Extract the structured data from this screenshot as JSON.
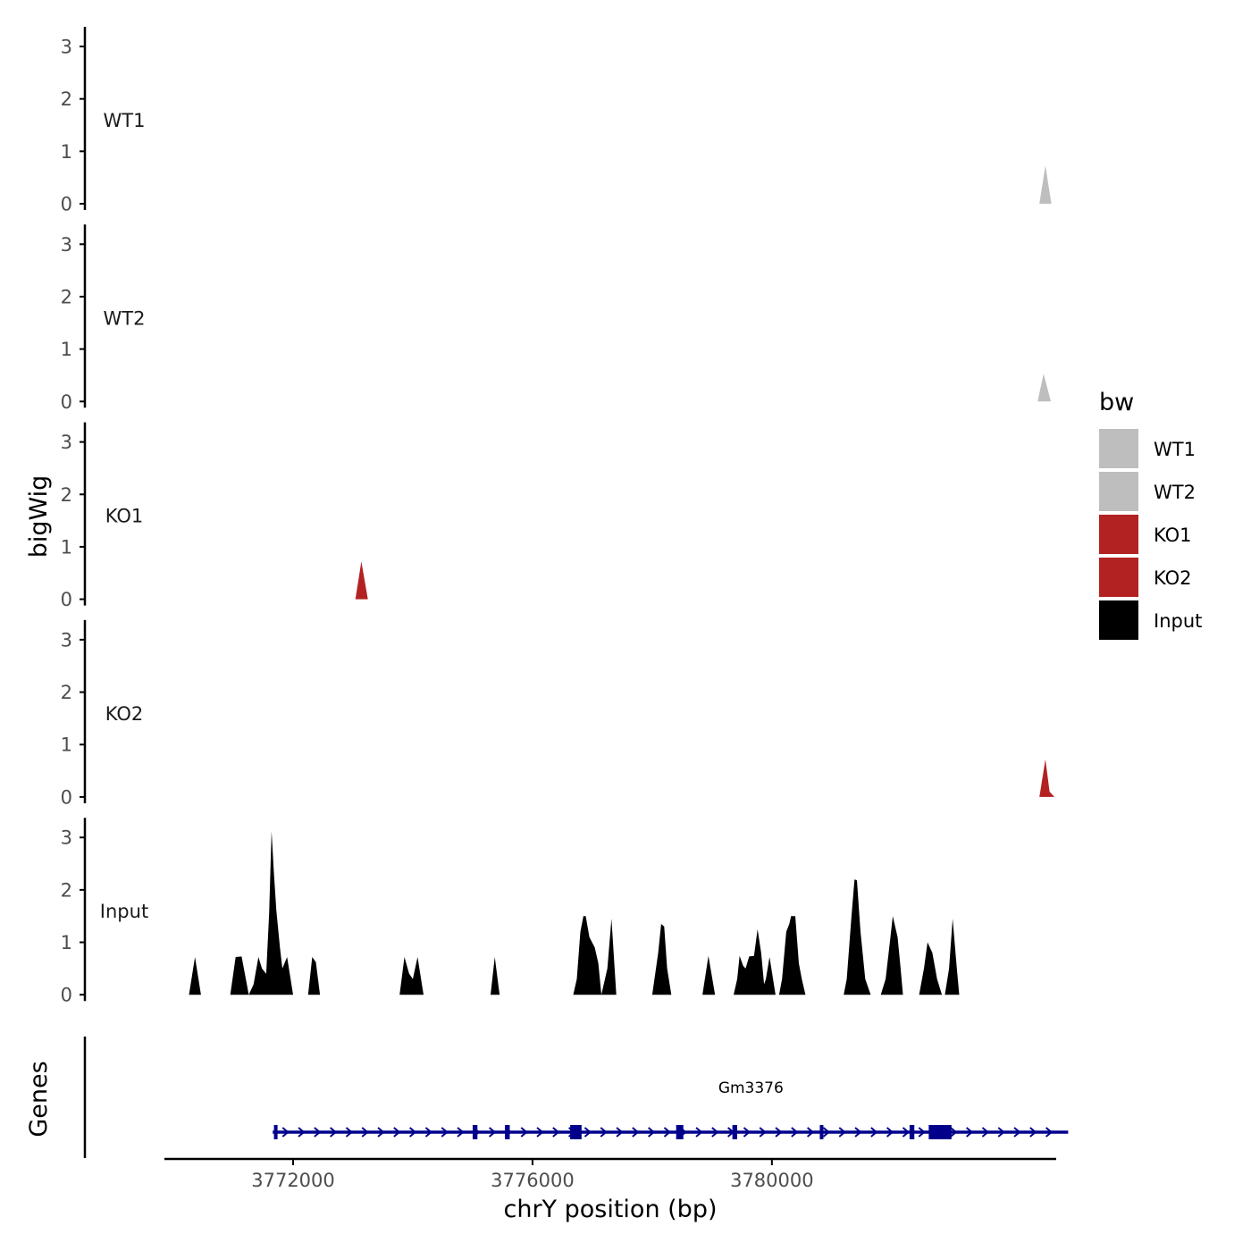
{
  "chart_data": {
    "type": "area",
    "chromosome": "chrY",
    "xlabel": "chrY position (bp)",
    "ylabel": "bigWig",
    "genes_panel_label": "Genes",
    "xlim": [
      3769850,
      3784750
    ],
    "x_ticks": [
      3772000,
      3776000,
      3780000
    ],
    "x_tick_labels": [
      "3772000",
      "3776000",
      "3780000"
    ],
    "ylim": [
      0,
      3.3
    ],
    "y_ticks": [
      0,
      1,
      2,
      3
    ],
    "y_tick_labels": [
      "0",
      "1",
      "2",
      "3"
    ],
    "legend": {
      "title": "bw",
      "position": "right",
      "entries": [
        {
          "label": "WT1",
          "color": "#BEBEBE"
        },
        {
          "label": "WT2",
          "color": "#BEBEBE"
        },
        {
          "label": "KO1",
          "color": "#B22222"
        },
        {
          "label": "KO2",
          "color": "#B22222"
        },
        {
          "label": "Input",
          "color": "#000000"
        }
      ]
    },
    "series": [
      {
        "name": "WT1",
        "color": "#BEBEBE",
        "points": [
          [
            3784470,
            0
          ],
          [
            3784570,
            0.73
          ],
          [
            3784670,
            0
          ]
        ]
      },
      {
        "name": "WT2",
        "color": "#BEBEBE",
        "points": [
          [
            3784440,
            0
          ],
          [
            3784540,
            0.53
          ],
          [
            3784660,
            0
          ]
        ]
      },
      {
        "name": "KO1",
        "color": "#B22222",
        "points": [
          [
            3773040,
            0
          ],
          [
            3773140,
            0.72
          ],
          [
            3773250,
            0
          ]
        ]
      },
      {
        "name": "KO2",
        "color": "#B22222",
        "points": [
          [
            3784470,
            0
          ],
          [
            3784570,
            0.72
          ],
          [
            3784640,
            0.1
          ],
          [
            3784720,
            0
          ]
        ]
      },
      {
        "name": "Input",
        "color": "#000000",
        "points": [
          [
            3770260,
            0
          ],
          [
            3770360,
            0.72
          ],
          [
            3770460,
            0
          ],
          [
            3770950,
            0
          ],
          [
            3771040,
            0.72
          ],
          [
            3771140,
            0.73
          ],
          [
            3771260,
            0
          ],
          [
            3771260,
            0
          ],
          [
            3771340,
            0.2
          ],
          [
            3771420,
            0.72
          ],
          [
            3771480,
            0.5
          ],
          [
            3771550,
            0.4
          ],
          [
            3771600,
            1.55
          ],
          [
            3771640,
            3.12
          ],
          [
            3771680,
            2.3
          ],
          [
            3771720,
            1.6
          ],
          [
            3771780,
            0.9
          ],
          [
            3771820,
            0.5
          ],
          [
            3771900,
            0.72
          ],
          [
            3772000,
            0
          ],
          [
            3772250,
            0
          ],
          [
            3772320,
            0.72
          ],
          [
            3772380,
            0.62
          ],
          [
            3772450,
            0
          ],
          [
            3773780,
            0
          ],
          [
            3773860,
            0.72
          ],
          [
            3773940,
            0.4
          ],
          [
            3774000,
            0.3
          ],
          [
            3774080,
            0.72
          ],
          [
            3774180,
            0
          ],
          [
            3775300,
            0
          ],
          [
            3775370,
            0.72
          ],
          [
            3775450,
            0
          ],
          [
            3776680,
            0
          ],
          [
            3776740,
            0.3
          ],
          [
            3776800,
            1.2
          ],
          [
            3776850,
            1.5
          ],
          [
            3776890,
            1.5
          ],
          [
            3776950,
            1.1
          ],
          [
            3777040,
            0.9
          ],
          [
            3777100,
            0.6
          ],
          [
            3777150,
            0
          ],
          [
            3777150,
            0
          ],
          [
            3777250,
            0.5
          ],
          [
            3777320,
            1.45
          ],
          [
            3777400,
            0
          ],
          [
            3778000,
            0
          ],
          [
            3778100,
            0.8
          ],
          [
            3778150,
            1.35
          ],
          [
            3778200,
            1.3
          ],
          [
            3778250,
            0.5
          ],
          [
            3778320,
            0
          ],
          [
            3778840,
            0
          ],
          [
            3778940,
            0.74
          ],
          [
            3779050,
            0
          ],
          [
            3779360,
            0
          ],
          [
            3779420,
            0.3
          ],
          [
            3779460,
            0.74
          ],
          [
            3779520,
            0.55
          ],
          [
            3779560,
            0.5
          ],
          [
            3779620,
            0.73
          ],
          [
            3779700,
            0.74
          ],
          [
            3779760,
            1.25
          ],
          [
            3779820,
            0.8
          ],
          [
            3779870,
            0.2
          ],
          [
            3779900,
            0.3
          ],
          [
            3779960,
            0.72
          ],
          [
            3780060,
            0
          ],
          [
            3780120,
            0
          ],
          [
            3780170,
            0.3
          ],
          [
            3780240,
            1.2
          ],
          [
            3780290,
            1.35
          ],
          [
            3780320,
            1.5
          ],
          [
            3780390,
            1.5
          ],
          [
            3780450,
            0.6
          ],
          [
            3780500,
            0.3
          ],
          [
            3780560,
            0
          ],
          [
            3781200,
            0
          ],
          [
            3781250,
            0.3
          ],
          [
            3781330,
            1.5
          ],
          [
            3781380,
            2.2
          ],
          [
            3781420,
            2.18
          ],
          [
            3781480,
            1.2
          ],
          [
            3781560,
            0.3
          ],
          [
            3781650,
            0
          ],
          [
            3781820,
            0
          ],
          [
            3781900,
            0.3
          ],
          [
            3781980,
            1.1
          ],
          [
            3782020,
            1.5
          ],
          [
            3782100,
            1.1
          ],
          [
            3782150,
            0.5
          ],
          [
            3782190,
            0
          ],
          [
            3782460,
            0
          ],
          [
            3782540,
            0.5
          ],
          [
            3782600,
            1.0
          ],
          [
            3782680,
            0.8
          ],
          [
            3782760,
            0.3
          ],
          [
            3782840,
            0
          ],
          [
            3782890,
            0
          ],
          [
            3782960,
            0.5
          ],
          [
            3783020,
            1.45
          ],
          [
            3783090,
            0.5
          ],
          [
            3783130,
            0
          ]
        ]
      }
    ],
    "gene_track": {
      "color": "#00008B",
      "genes": [
        {
          "name": "Gm3376",
          "start": 3771660,
          "end": 3784950,
          "strand": "+",
          "exons": [
            [
              3771680,
              3771740
            ],
            [
              3775000,
              3775080
            ],
            [
              3775540,
              3775620
            ],
            [
              3776630,
              3776820
            ],
            [
              3778400,
              3778520
            ],
            [
              3779340,
              3779420
            ],
            [
              3780800,
              3780860
            ],
            [
              3782300,
              3782380
            ],
            [
              3782620,
              3783000
            ]
          ]
        }
      ]
    }
  }
}
